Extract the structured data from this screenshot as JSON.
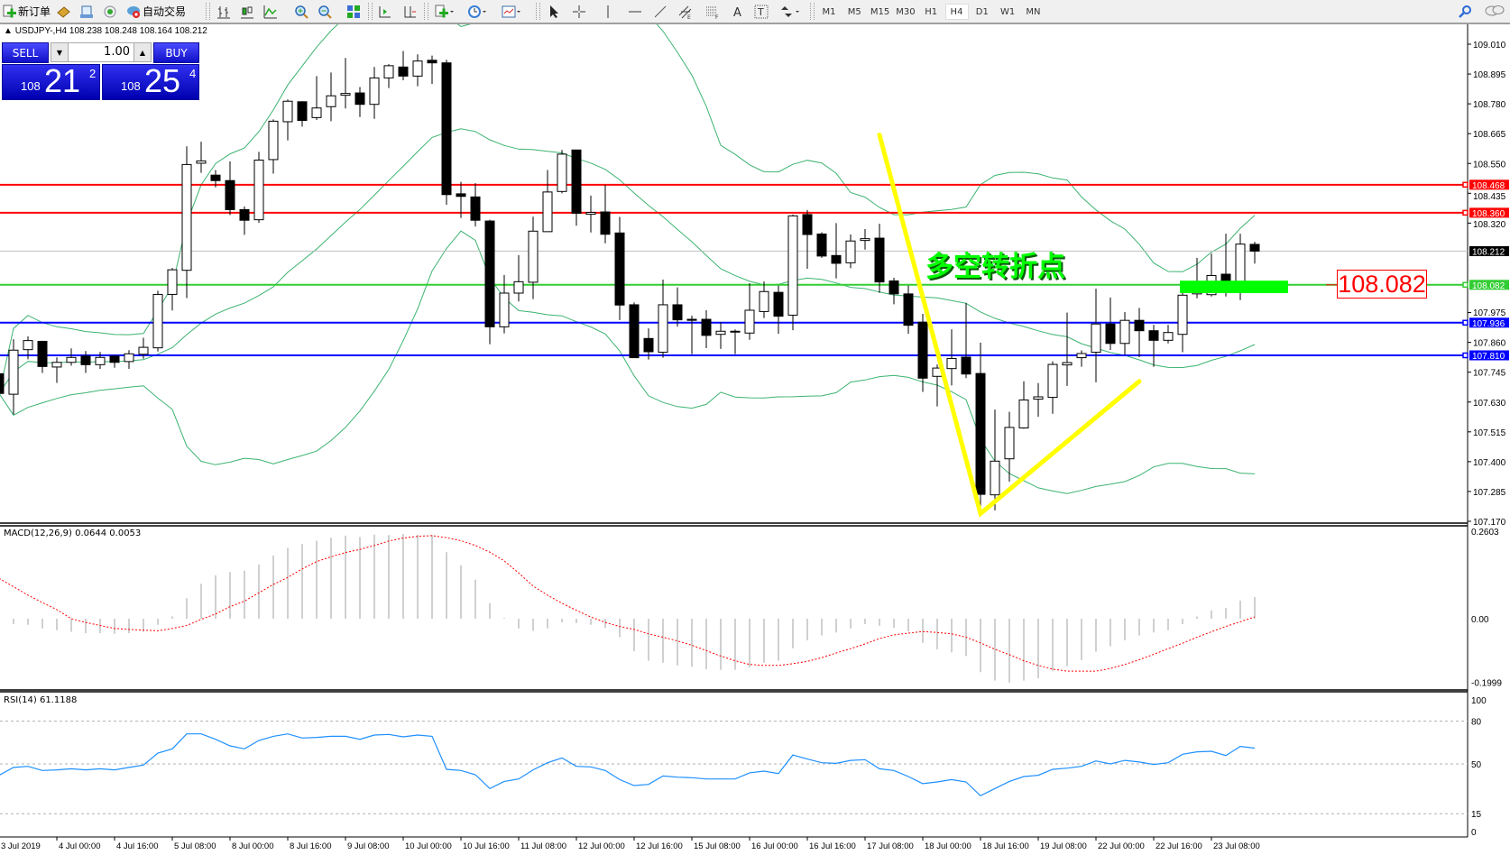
{
  "toolbar": {
    "new_order_label": "新订单",
    "auto_trading_label": "自动交易",
    "icons": [
      "new-order-icon",
      "history-icon",
      "market-watch-icon",
      "signals-icon",
      "auto-trading-icon",
      "bar-chart-icon",
      "candlestick-icon",
      "line-chart-icon",
      "zoom-in-icon",
      "zoom-out-icon",
      "tile-windows-icon",
      "chart-shift-icon",
      "autoscroll-icon",
      "indicators-icon",
      "periods-icon",
      "templates-icon",
      "cursor-icon",
      "crosshair-icon",
      "vertical-line-icon",
      "horizontal-line-icon",
      "trendline-icon",
      "equidistant-channel-icon",
      "fibonacci-icon",
      "text-icon",
      "text-label-icon",
      "arrows-icon",
      "search-icon",
      "chat-icon"
    ],
    "timeframes": [
      "M1",
      "M5",
      "M15",
      "M30",
      "H1",
      "H4",
      "D1",
      "W1",
      "MN"
    ],
    "active_timeframe": "H4"
  },
  "chart": {
    "header": "USDJPY-,H4  108.238 108.248 108.164 108.212",
    "symbol": "USDJPY-",
    "period": "H4",
    "ohlc": {
      "open": "108.238",
      "high": "108.248",
      "low": "108.164",
      "close": "108.212"
    }
  },
  "one_click": {
    "sell_label": "SELL",
    "buy_label": "BUY",
    "lot": "1.00",
    "sell_price": {
      "big": "108",
      "main": "21",
      "sup": "2"
    },
    "buy_price": {
      "big": "108",
      "main": "25",
      "sup": "4"
    },
    "color": "#1a1ae0"
  },
  "annotations": {
    "text": "多空转折点",
    "text_color": "#00ff00",
    "price_label": "108.082",
    "price_label_color": "#ff0000",
    "v_line_color": "#ffff00",
    "v_points": [
      [
        61,
        108.66
      ],
      [
        68,
        107.2
      ],
      [
        79,
        107.71
      ]
    ],
    "zone": {
      "from_bar": 82,
      "to_bar": 89.5,
      "price_top": 108.098,
      "price_bottom": 108.05,
      "color": "#00ff00"
    }
  },
  "price_axis": {
    "min": 107.17,
    "max": 109.01,
    "ticks": [
      "109.010",
      "108.895",
      "108.780",
      "108.665",
      "108.550",
      "108.435",
      "108.320",
      "107.975",
      "107.860",
      "107.745",
      "107.630",
      "107.515",
      "107.400",
      "107.285",
      "107.170"
    ]
  },
  "levels": [
    {
      "price": "108.468",
      "color": "#ff0000",
      "tag_text": "#ffffff"
    },
    {
      "price": "108.360",
      "color": "#ff0000",
      "tag_text": "#ffffff"
    },
    {
      "price": "108.212",
      "color": "#c0c0c0",
      "tag_bg": "#000000",
      "tag_text": "#ffffff",
      "bid": true
    },
    {
      "price": "108.082",
      "color": "#32cd32",
      "tag_text": "#ffffff"
    },
    {
      "price": "107.936",
      "color": "#0000ff",
      "tag_text": "#ffffff"
    },
    {
      "price": "107.810",
      "color": "#0000ff",
      "tag_text": "#ffffff"
    }
  ],
  "time_axis": [
    "3 Jul 2019",
    "4 Jul 00:00",
    "4 Jul 16:00",
    "5 Jul 08:00",
    "8 Jul 00:00",
    "8 Jul 16:00",
    "9 Jul 08:00",
    "10 Jul 00:00",
    "10 Jul 16:00",
    "11 Jul 08:00",
    "12 Jul 00:00",
    "12 Jul 16:00",
    "15 Jul 08:00",
    "16 Jul 00:00",
    "16 Jul 16:00",
    "17 Jul 08:00",
    "18 Jul 00:00",
    "18 Jul 16:00",
    "19 Jul 08:00",
    "22 Jul 00:00",
    "22 Jul 16:00",
    "23 Jul 08:00"
  ],
  "chart_data": {
    "type": "candlestick",
    "candles_ohlc": [
      [
        107.739,
        107.76,
        107.64,
        107.663
      ],
      [
        107.66,
        107.872,
        107.582,
        107.83
      ],
      [
        107.832,
        107.883,
        107.795,
        107.867
      ],
      [
        107.864,
        107.866,
        107.742,
        107.767
      ],
      [
        107.765,
        107.802,
        107.704,
        107.783
      ],
      [
        107.783,
        107.837,
        107.77,
        107.802
      ],
      [
        107.807,
        107.827,
        107.742,
        107.774
      ],
      [
        107.774,
        107.823,
        107.758,
        107.802
      ],
      [
        107.807,
        107.811,
        107.762,
        107.783
      ],
      [
        107.786,
        107.83,
        107.758,
        107.816
      ],
      [
        107.814,
        107.878,
        107.797,
        107.841
      ],
      [
        107.839,
        108.059,
        107.825,
        108.045
      ],
      [
        108.045,
        108.147,
        107.983,
        108.14
      ],
      [
        108.138,
        108.616,
        108.031,
        108.546
      ],
      [
        108.551,
        108.634,
        108.514,
        108.56
      ],
      [
        108.505,
        108.525,
        108.458,
        108.484
      ],
      [
        108.484,
        108.558,
        108.351,
        108.372
      ],
      [
        108.372,
        108.384,
        108.275,
        108.331
      ],
      [
        108.333,
        108.595,
        108.321,
        108.563
      ],
      [
        108.565,
        108.72,
        108.511,
        108.713
      ],
      [
        108.711,
        108.797,
        108.639,
        108.79
      ],
      [
        108.788,
        108.79,
        108.692,
        108.716
      ],
      [
        108.727,
        108.887,
        108.718,
        108.764
      ],
      [
        108.769,
        108.901,
        108.713,
        108.811
      ],
      [
        108.813,
        108.957,
        108.762,
        108.82
      ],
      [
        108.822,
        108.845,
        108.729,
        108.778
      ],
      [
        108.778,
        108.922,
        108.722,
        108.88
      ],
      [
        108.88,
        108.933,
        108.841,
        108.927
      ],
      [
        108.922,
        108.984,
        108.871,
        108.887
      ],
      [
        108.887,
        108.971,
        108.848,
        108.945
      ],
      [
        108.948,
        108.966,
        108.857,
        108.938
      ],
      [
        108.938,
        108.95,
        108.391,
        108.43
      ],
      [
        108.433,
        108.479,
        108.34,
        108.423
      ],
      [
        108.421,
        108.474,
        108.307,
        108.331
      ],
      [
        108.328,
        108.333,
        107.853,
        107.92
      ],
      [
        107.92,
        108.12,
        107.895,
        108.05
      ],
      [
        108.05,
        108.196,
        108.018,
        108.094
      ],
      [
        108.092,
        108.345,
        108.027,
        108.289
      ],
      [
        108.287,
        108.525,
        108.287,
        108.44
      ],
      [
        108.442,
        108.602,
        108.435,
        108.586
      ],
      [
        108.602,
        108.602,
        108.31,
        108.358
      ],
      [
        108.354,
        108.426,
        108.284,
        108.361
      ],
      [
        108.363,
        108.467,
        108.242,
        108.277
      ],
      [
        108.282,
        108.344,
        107.946,
        108.004
      ],
      [
        108.005,
        108.014,
        107.801,
        107.801
      ],
      [
        107.875,
        107.914,
        107.794,
        107.824
      ],
      [
        107.822,
        108.102,
        107.801,
        108.005
      ],
      [
        108.005,
        108.072,
        107.921,
        107.947
      ],
      [
        107.949,
        107.963,
        107.815,
        107.945
      ],
      [
        107.949,
        107.984,
        107.838,
        107.887
      ],
      [
        107.891,
        107.938,
        107.835,
        107.903
      ],
      [
        107.903,
        107.91,
        107.815,
        107.902
      ],
      [
        107.896,
        108.088,
        107.87,
        107.984
      ],
      [
        107.979,
        108.095,
        107.954,
        108.056
      ],
      [
        108.053,
        108.079,
        107.893,
        107.961
      ],
      [
        107.965,
        108.353,
        107.907,
        108.348
      ],
      [
        108.353,
        108.371,
        108.144,
        108.276
      ],
      [
        108.278,
        108.285,
        108.186,
        108.193
      ],
      [
        108.195,
        108.32,
        108.107,
        108.165
      ],
      [
        108.167,
        108.276,
        108.146,
        108.251
      ],
      [
        108.253,
        108.297,
        108.218,
        108.26
      ],
      [
        108.262,
        108.318,
        108.051,
        108.093
      ],
      [
        108.097,
        108.109,
        108.007,
        108.047
      ],
      [
        108.047,
        108.079,
        107.893,
        107.926
      ],
      [
        107.938,
        107.97,
        107.669,
        107.722
      ],
      [
        107.729,
        107.775,
        107.613,
        107.761
      ],
      [
        107.759,
        107.91,
        107.694,
        107.798
      ],
      [
        107.803,
        108.012,
        107.722,
        107.738
      ],
      [
        107.74,
        107.859,
        107.221,
        107.274
      ],
      [
        107.272,
        107.601,
        107.212,
        107.402
      ],
      [
        107.411,
        107.592,
        107.323,
        107.532
      ],
      [
        107.53,
        107.71,
        107.527,
        107.638
      ],
      [
        107.641,
        107.703,
        107.573,
        107.65
      ],
      [
        107.648,
        107.787,
        107.585,
        107.775
      ],
      [
        107.773,
        107.975,
        107.692,
        107.782
      ],
      [
        107.801,
        107.829,
        107.766,
        107.817
      ],
      [
        107.822,
        108.067,
        107.706,
        107.931
      ],
      [
        107.931,
        108.033,
        107.831,
        107.856
      ],
      [
        107.856,
        107.977,
        107.812,
        107.945
      ],
      [
        107.945,
        107.993,
        107.803,
        107.905
      ],
      [
        107.905,
        107.928,
        107.766,
        107.868
      ],
      [
        107.868,
        107.928,
        107.856,
        107.898
      ],
      [
        107.891,
        108.06,
        107.822,
        108.042
      ],
      [
        108.047,
        108.186,
        108.03,
        108.09
      ],
      [
        108.044,
        108.202,
        108.037,
        108.118
      ],
      [
        108.123,
        108.279,
        108.037,
        108.058
      ],
      [
        108.056,
        108.279,
        108.023,
        108.239
      ],
      [
        108.238,
        108.248,
        108.164,
        108.212
      ]
    ],
    "bollinger": {
      "period": 20,
      "deviations": 2,
      "color": "#3cb371"
    },
    "up_color": "#ffffff",
    "down_color": "#000000",
    "macd": {
      "label": "MACD(12,26,9) 0.0644 0.0053",
      "ylim": [
        -0.1999,
        0.2603
      ],
      "tick_labels": [
        "0.2603",
        "0.00",
        "-0.1999"
      ],
      "histogram_color": "#c0c0c0",
      "signal_color": "#ff0000",
      "histogram": [
        -0.012,
        -0.016,
        -0.018,
        -0.029,
        -0.034,
        -0.039,
        -0.043,
        -0.043,
        -0.045,
        -0.043,
        -0.039,
        -0.018,
        0.007,
        0.061,
        0.104,
        0.129,
        0.139,
        0.143,
        0.161,
        0.188,
        0.211,
        0.222,
        0.232,
        0.241,
        0.247,
        0.243,
        0.25,
        0.249,
        0.252,
        0.25,
        0.249,
        0.198,
        0.159,
        0.116,
        0.046,
        0.002,
        -0.029,
        -0.036,
        -0.029,
        -0.011,
        -0.013,
        -0.018,
        -0.027,
        -0.055,
        -0.097,
        -0.125,
        -0.131,
        -0.139,
        -0.143,
        -0.15,
        -0.152,
        -0.152,
        -0.145,
        -0.131,
        -0.125,
        -0.088,
        -0.064,
        -0.05,
        -0.041,
        -0.029,
        -0.016,
        -0.021,
        -0.027,
        -0.038,
        -0.072,
        -0.091,
        -0.1,
        -0.111,
        -0.159,
        -0.184,
        -0.19,
        -0.184,
        -0.177,
        -0.156,
        -0.141,
        -0.123,
        -0.098,
        -0.082,
        -0.064,
        -0.05,
        -0.041,
        -0.034,
        -0.016,
        0.007,
        0.025,
        0.032,
        0.054,
        0.0644
      ],
      "signal": [
        0.12,
        0.095,
        0.07,
        0.048,
        0.027,
        0.0,
        -0.011,
        -0.02,
        -0.029,
        -0.032,
        -0.034,
        -0.036,
        -0.029,
        -0.02,
        -0.002,
        0.014,
        0.036,
        0.052,
        0.077,
        0.102,
        0.123,
        0.148,
        0.17,
        0.184,
        0.197,
        0.206,
        0.218,
        0.231,
        0.24,
        0.245,
        0.247,
        0.241,
        0.232,
        0.218,
        0.198,
        0.172,
        0.136,
        0.097,
        0.07,
        0.046,
        0.025,
        0.005,
        -0.011,
        -0.023,
        -0.032,
        -0.045,
        -0.055,
        -0.066,
        -0.079,
        -0.095,
        -0.111,
        -0.125,
        -0.136,
        -0.139,
        -0.139,
        -0.134,
        -0.127,
        -0.116,
        -0.102,
        -0.089,
        -0.075,
        -0.059,
        -0.048,
        -0.043,
        -0.038,
        -0.041,
        -0.045,
        -0.055,
        -0.072,
        -0.091,
        -0.107,
        -0.125,
        -0.139,
        -0.15,
        -0.156,
        -0.156,
        -0.156,
        -0.148,
        -0.136,
        -0.122,
        -0.106,
        -0.089,
        -0.073,
        -0.055,
        -0.039,
        -0.023,
        -0.009,
        0.0053
      ]
    },
    "rsi": {
      "label": "RSI(14) 61.1188",
      "ylim": [
        0,
        100
      ],
      "tick_labels": [
        "100",
        "80",
        "50",
        "15",
        "0"
      ],
      "levels": [
        80,
        50,
        15
      ],
      "color": "#1e90ff",
      "values": [
        42.0,
        47.5,
        48.3,
        45.4,
        45.8,
        46.6,
        45.8,
        46.6,
        45.8,
        47.5,
        49.2,
        57.6,
        60.6,
        71.1,
        71.1,
        67.3,
        62.7,
        60.6,
        66.5,
        69.4,
        71.1,
        68.2,
        68.6,
        69.4,
        69.4,
        67.3,
        70.3,
        70.7,
        69.0,
        70.3,
        69.4,
        46.2,
        45.4,
        42.4,
        32.7,
        37.7,
        39.4,
        45.8,
        50.8,
        54.2,
        48.3,
        47.9,
        45.4,
        39.0,
        34.8,
        35.6,
        41.5,
        40.7,
        40.3,
        39.4,
        39.4,
        39.4,
        43.7,
        44.9,
        43.2,
        56.3,
        53.4,
        50.8,
        50.4,
        52.5,
        53.0,
        46.6,
        45.4,
        41.1,
        36.1,
        37.3,
        39.0,
        37.3,
        27.6,
        32.7,
        37.7,
        41.1,
        42.0,
        46.2,
        47.0,
        48.3,
        52.1,
        50.0,
        52.5,
        51.3,
        49.6,
        50.8,
        56.8,
        58.5,
        58.9,
        55.9,
        62.3,
        61.1188
      ]
    }
  }
}
